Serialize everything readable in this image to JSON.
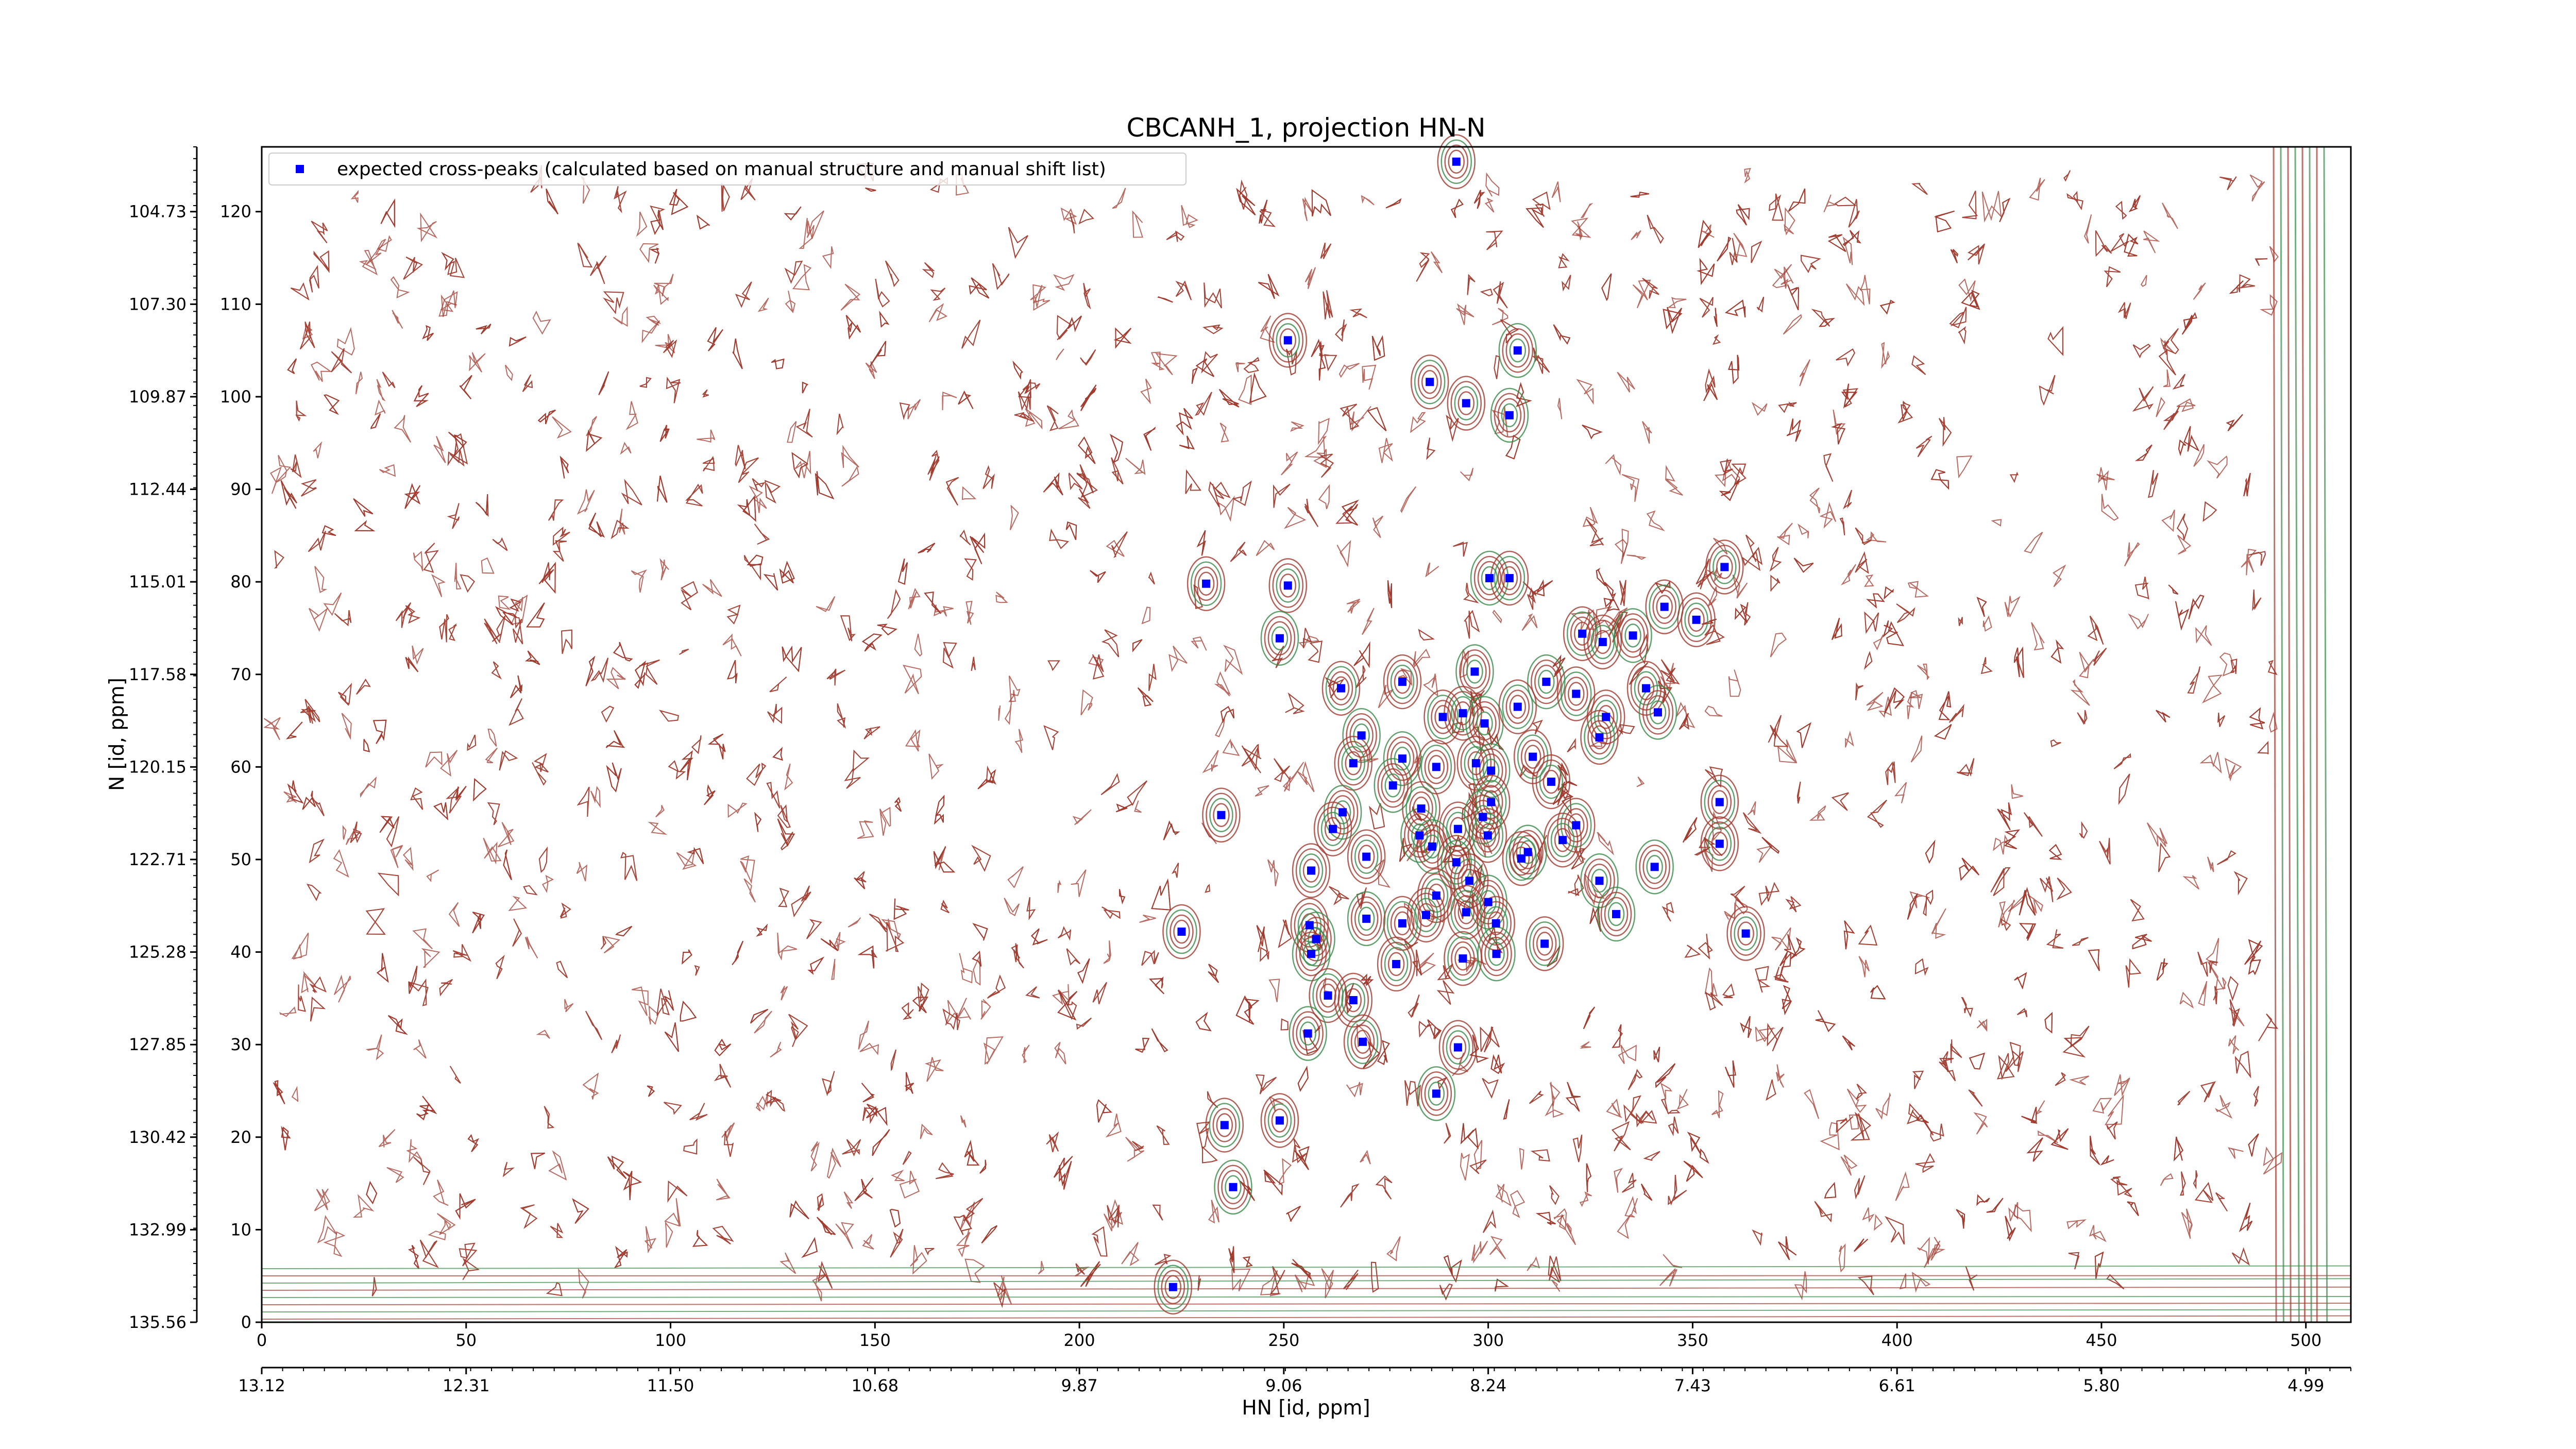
{
  "chart_data": {
    "type": "scatter",
    "title": "CBCANH_1, projection HN-N",
    "xlabel": "HN [id, ppm]",
    "ylabel": "N [id, ppm]",
    "xlim": [
      0,
      511
    ],
    "ylim": [
      0,
      127
    ],
    "xticks": [
      0,
      50,
      100,
      150,
      200,
      250,
      300,
      350,
      400,
      450,
      500
    ],
    "yticks": [
      0,
      10,
      20,
      30,
      40,
      50,
      60,
      70,
      80,
      90,
      100,
      110,
      120
    ],
    "secondary_xticks": [
      {
        "value": 0,
        "label": "13.12"
      },
      {
        "value": 50,
        "label": "12.31"
      },
      {
        "value": 100,
        "label": "11.50"
      },
      {
        "value": 150,
        "label": "10.68"
      },
      {
        "value": 200,
        "label": "9.87"
      },
      {
        "value": 250,
        "label": "9.06"
      },
      {
        "value": 300,
        "label": "8.24"
      },
      {
        "value": 350,
        "label": "7.43"
      },
      {
        "value": 400,
        "label": "6.61"
      },
      {
        "value": 450,
        "label": "5.80"
      },
      {
        "value": 500,
        "label": "4.99"
      }
    ],
    "secondary_yticks": [
      {
        "value": 0,
        "label": "135.56"
      },
      {
        "value": 10,
        "label": "132.99"
      },
      {
        "value": 20,
        "label": "130.42"
      },
      {
        "value": 30,
        "label": "127.85"
      },
      {
        "value": 40,
        "label": "125.28"
      },
      {
        "value": 50,
        "label": "122.71"
      },
      {
        "value": 60,
        "label": "120.15"
      },
      {
        "value": 70,
        "label": "117.58"
      },
      {
        "value": 80,
        "label": "115.01"
      },
      {
        "value": 90,
        "label": "112.44"
      },
      {
        "value": 100,
        "label": "109.87"
      },
      {
        "value": 110,
        "label": "107.30"
      },
      {
        "value": 120,
        "label": "104.73"
      }
    ],
    "legend": "upper left",
    "x": [
      292.2,
      251,
      307.2,
      285.7,
      294.6,
      305.2,
      231,
      251,
      300.3,
      305.2,
      357.8,
      249,
      323,
      328,
      335.4,
      343.1,
      350.9,
      296.7,
      264,
      279,
      314.2,
      321.5,
      338.6,
      341.5,
      288.9,
      293.8,
      299.1,
      307.2,
      328.8,
      269,
      327.2,
      267,
      279,
      287.3,
      297,
      300.7,
      310.9,
      315.4,
      276.7,
      300.7,
      234.7,
      264.4,
      283.6,
      292.6,
      298.7,
      321.5,
      262,
      283.2,
      299.9,
      318.2,
      309.7,
      308.1,
      270.2,
      286.3,
      292.2,
      256.7,
      340.7,
      356.6,
      356.6,
      327.2,
      295.4,
      287.3,
      300,
      294.6,
      284.8,
      331.3,
      225,
      256.3,
      270.2,
      279,
      301.9,
      257.9,
      313.8,
      363,
      256.7,
      293.8,
      277.5,
      302,
      260.8,
      267,
      255.9,
      269.3,
      292.6,
      287.3,
      235.5,
      249,
      237.6,
      222.9
    ],
    "series": [
      {
        "name": "expected cross-peaks (calculated based on manual structure and manual shift list)",
        "color": "#0000ff",
        "values": [
          125.4,
          106.1,
          105,
          101.6,
          99.3,
          98,
          79.8,
          79.6,
          80.4,
          80.4,
          81.6,
          73.9,
          74.4,
          73.5,
          74.2,
          77.3,
          75.9,
          70.3,
          68.5,
          69.2,
          69.2,
          67.9,
          68.5,
          65.9,
          65.4,
          65.8,
          64.7,
          66.5,
          65.4,
          63.4,
          63.2,
          60.4,
          60.9,
          60,
          60.4,
          59.6,
          61.1,
          58.4,
          58,
          56.2,
          54.8,
          55.1,
          55.5,
          53.3,
          54.6,
          53.7,
          53.3,
          52.6,
          52.6,
          52.1,
          50.8,
          50.1,
          50.3,
          51.4,
          49.7,
          48.8,
          49.2,
          56.2,
          51.7,
          47.7,
          47.7,
          46.1,
          45.4,
          44.3,
          44,
          44.1,
          42.2,
          42.9,
          43.6,
          43.1,
          43.1,
          41.4,
          40.9,
          42,
          39.8,
          39.3,
          38.7,
          39.8,
          35.3,
          34.8,
          31.2,
          30.3,
          29.7,
          24.7,
          21.3,
          21.8,
          14.6,
          3.8
        ]
      }
    ]
  }
}
